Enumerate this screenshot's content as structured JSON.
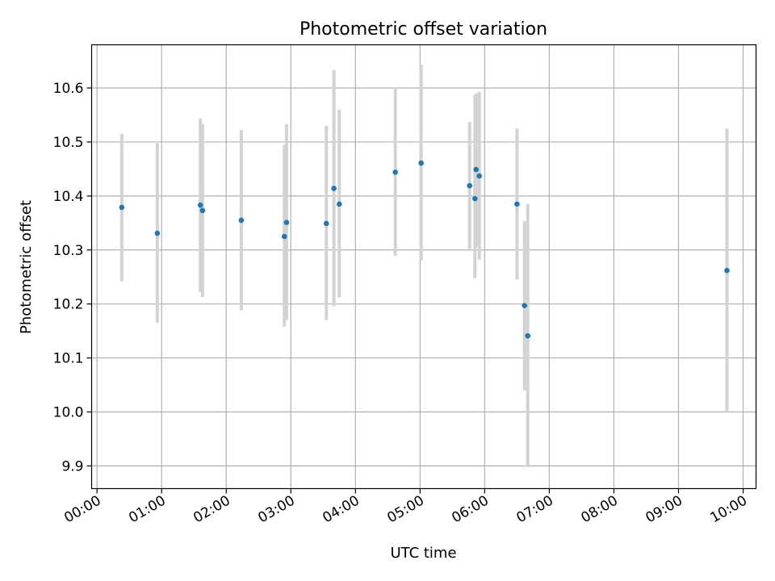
{
  "chart_data": {
    "type": "scatter",
    "title": "Photometric offset variation",
    "xlabel": "UTC time",
    "ylabel": "Photometric offset",
    "x_tick_labels": [
      "00:00",
      "01:00",
      "02:00",
      "03:00",
      "04:00",
      "05:00",
      "06:00",
      "07:00",
      "08:00",
      "09:00",
      "10:00"
    ],
    "x_ticks_minutes": [
      0,
      60,
      120,
      180,
      240,
      300,
      360,
      420,
      480,
      540,
      600
    ],
    "xlim_minutes": [
      -5,
      612
    ],
    "y_ticks": [
      9.9,
      10.0,
      10.1,
      10.2,
      10.3,
      10.4,
      10.5,
      10.6
    ],
    "y_tick_labels": [
      "9.9",
      "10.0",
      "10.1",
      "10.2",
      "10.3",
      "10.4",
      "10.5",
      "10.6"
    ],
    "ylim": [
      9.858,
      10.68
    ],
    "grid": true,
    "colors": {
      "point": "#1f77b4",
      "errorbar": "#d3d3d3",
      "grid": "#b0b0b0"
    },
    "points": [
      {
        "time": "00:23",
        "value": 10.379,
        "low": 10.242,
        "high": 10.515
      },
      {
        "time": "00:56",
        "value": 10.331,
        "low": 10.165,
        "high": 10.498
      },
      {
        "time": "01:36",
        "value": 10.383,
        "low": 10.222,
        "high": 10.543
      },
      {
        "time": "01:38",
        "value": 10.373,
        "low": 10.213,
        "high": 10.533
      },
      {
        "time": "02:14",
        "value": 10.355,
        "low": 10.188,
        "high": 10.522
      },
      {
        "time": "02:54",
        "value": 10.325,
        "low": 10.158,
        "high": 10.495
      },
      {
        "time": "02:56",
        "value": 10.351,
        "low": 10.17,
        "high": 10.533
      },
      {
        "time": "03:33",
        "value": 10.349,
        "low": 10.17,
        "high": 10.53
      },
      {
        "time": "03:40",
        "value": 10.414,
        "low": 10.196,
        "high": 10.633
      },
      {
        "time": "03:45",
        "value": 10.385,
        "low": 10.212,
        "high": 10.56
      },
      {
        "time": "04:37",
        "value": 10.444,
        "low": 10.289,
        "high": 10.6
      },
      {
        "time": "05:01",
        "value": 10.461,
        "low": 10.28,
        "high": 10.643
      },
      {
        "time": "05:46",
        "value": 10.419,
        "low": 10.302,
        "high": 10.537
      },
      {
        "time": "05:51",
        "value": 10.395,
        "low": 10.248,
        "high": 10.587
      },
      {
        "time": "05:52",
        "value": 10.449,
        "low": 10.305,
        "high": 10.59
      },
      {
        "time": "05:55",
        "value": 10.437,
        "low": 10.282,
        "high": 10.593
      },
      {
        "time": "06:30",
        "value": 10.385,
        "low": 10.245,
        "high": 10.525
      },
      {
        "time": "06:37",
        "value": 10.197,
        "low": 10.04,
        "high": 10.353
      },
      {
        "time": "06:40",
        "value": 10.141,
        "low": 9.898,
        "high": 10.385
      },
      {
        "time": "09:45",
        "value": 10.262,
        "low": 10.0,
        "high": 10.525
      }
    ]
  }
}
